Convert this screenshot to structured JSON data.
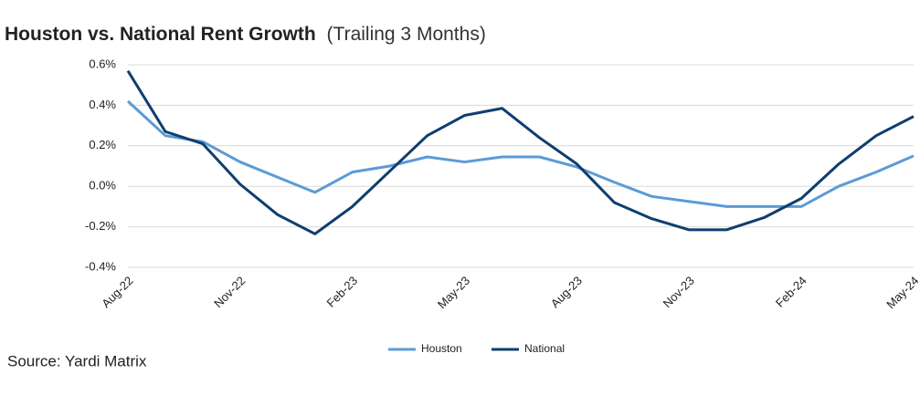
{
  "chart_data": {
    "type": "line",
    "title": "Houston vs. National Rent Growth",
    "subtitle": "(Trailing 3 Months)",
    "source": "Source: Yardi Matrix",
    "categories": [
      "Aug-22",
      null,
      null,
      "Nov-22",
      null,
      null,
      "Feb-23",
      null,
      null,
      "May-23",
      null,
      null,
      "Aug-23",
      null,
      null,
      "Nov-23",
      null,
      null,
      "Feb-24",
      null,
      null,
      "May-24"
    ],
    "series": [
      {
        "name": "Houston",
        "color": "#5b9bd5",
        "values": [
          0.42,
          0.25,
          0.22,
          0.12,
          0.045,
          -0.03,
          0.07,
          0.1,
          0.145,
          0.12,
          0.145,
          0.145,
          0.095,
          0.02,
          -0.05,
          -0.075,
          -0.1,
          -0.1,
          -0.1,
          0.0,
          0.07,
          0.15
        ]
      },
      {
        "name": "National",
        "color": "#0f3e6e",
        "values": [
          0.57,
          0.27,
          0.21,
          0.01,
          -0.14,
          -0.235,
          -0.1,
          0.075,
          0.25,
          0.35,
          0.385,
          0.24,
          0.11,
          -0.08,
          -0.16,
          -0.215,
          -0.215,
          -0.155,
          -0.06,
          0.11,
          0.25,
          0.345
        ]
      }
    ],
    "ylim": [
      -0.4,
      0.6
    ],
    "yticks": [
      {
        "value": -0.4,
        "label": "-0.4%"
      },
      {
        "value": -0.2,
        "label": "-0.2%"
      },
      {
        "value": 0.0,
        "label": "0.0%"
      },
      {
        "value": 0.2,
        "label": "0.2%"
      },
      {
        "value": 0.4,
        "label": "0.4%"
      },
      {
        "value": 0.6,
        "label": "0.6%"
      }
    ],
    "grid": true,
    "legend": "bottom"
  }
}
